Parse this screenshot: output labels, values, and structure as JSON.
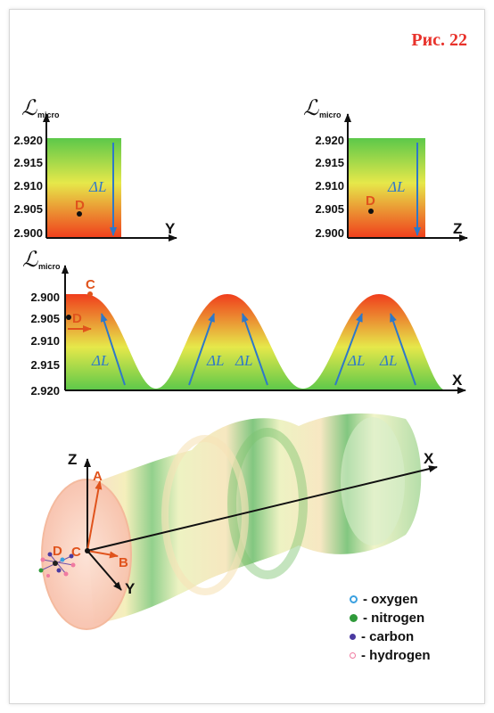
{
  "figure_title": "Рис. 22",
  "colors": {
    "arrow_blue": "#2e78c9",
    "label_red": "#e0531c",
    "title_red": "#e8322b"
  },
  "panel_y": {
    "axis_symbol": "ℒ",
    "axis_subscript": "micro",
    "ticks": [
      "2.920",
      "2.915",
      "2.910",
      "2.905",
      "2.900"
    ],
    "x_axis_label": "Y",
    "point_label": "D",
    "delta_label": "ΔL"
  },
  "panel_z": {
    "axis_symbol": "ℒ",
    "axis_subscript": "micro",
    "ticks": [
      "2.920",
      "2.915",
      "2.910",
      "2.905",
      "2.900"
    ],
    "x_axis_label": "Z",
    "point_label": "D",
    "delta_label": "ΔL"
  },
  "panel_x": {
    "axis_symbol": "ℒ",
    "axis_subscript": "micro",
    "ticks": [
      "2.900",
      "2.905",
      "2.910",
      "2.915",
      "2.920"
    ],
    "x_axis_label": "X",
    "point_c": "C",
    "point_d": "D",
    "delta_labels": [
      "ΔL",
      "ΔL",
      "ΔL",
      "ΔL",
      "ΔL"
    ]
  },
  "panel_3d": {
    "axes": {
      "x": "X",
      "y": "Y",
      "z": "Z"
    },
    "points": {
      "a": "A",
      "b": "B",
      "c": "C",
      "d": "D"
    }
  },
  "legend": [
    {
      "label": "- oxygen",
      "color": "#3aa0e0",
      "icon": "oxygen-atom-icon"
    },
    {
      "label": "- nitrogen",
      "color": "#2f9a3a",
      "icon": "nitrogen-atom-icon"
    },
    {
      "label": "- carbon",
      "color": "#4a3aa0",
      "icon": "carbon-atom-icon"
    },
    {
      "label": "- hydrogen",
      "color": "#f07aa0",
      "icon": "hydrogen-atom-icon"
    }
  ]
}
